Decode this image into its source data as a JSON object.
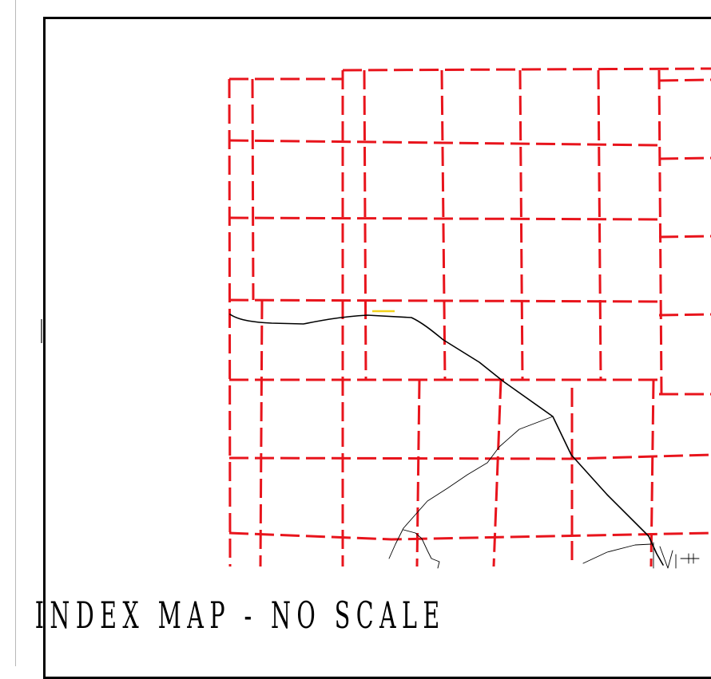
{
  "map": {
    "title": "INDEX MAP - NO SCALE",
    "grid_color": "#e8141c",
    "road_color": "#000000",
    "highlight_color": "#f2d21b"
  }
}
